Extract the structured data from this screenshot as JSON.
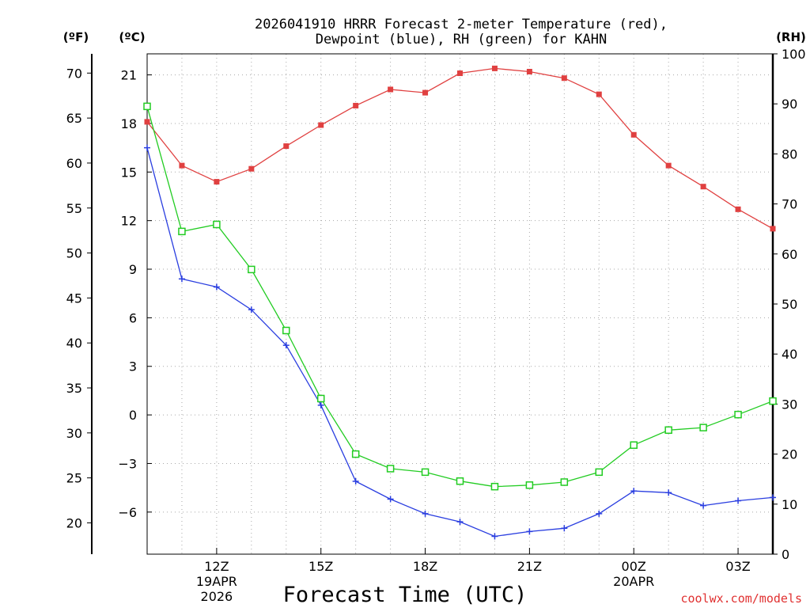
{
  "chart_data": {
    "type": "line",
    "title_line1": "2026041910 HRRR Forecast 2-meter Temperature (red),",
    "title_line2": "Dewpoint (blue), RH (green) for KAHN",
    "xlabel": "Forecast Time (UTC)",
    "credit": "coolwx.com/models",
    "units": {
      "f": "(ºF)",
      "c": "(ºC)",
      "rh": "(RH)"
    },
    "x": [
      10,
      11,
      12,
      13,
      14,
      15,
      16,
      17,
      18,
      19,
      20,
      21,
      22,
      23,
      24,
      25,
      26,
      27,
      28
    ],
    "xlim": [
      10,
      28
    ],
    "c_ylim": [
      -8.6,
      22.3
    ],
    "c_ticks": [
      "21",
      "18",
      "15",
      "12",
      "9",
      "6",
      "3",
      "0",
      "−3",
      "−6"
    ],
    "c_tick_values": [
      21,
      18,
      15,
      12,
      9,
      6,
      3,
      0,
      -3,
      -6
    ],
    "f_ticks": [
      "70",
      "65",
      "60",
      "55",
      "50",
      "45",
      "40",
      "35",
      "30",
      "25",
      "20"
    ],
    "f_tick_values": [
      70,
      65,
      60,
      55,
      50,
      45,
      40,
      35,
      30,
      25,
      20
    ],
    "rh_ylim": [
      0,
      100
    ],
    "rh_ticks": [
      "100",
      "90",
      "80",
      "70",
      "60",
      "50",
      "40",
      "30",
      "20",
      "10",
      "0"
    ],
    "rh_tick_values": [
      100,
      90,
      80,
      70,
      60,
      50,
      40,
      30,
      20,
      10,
      0
    ],
    "x_ticks": [
      {
        "x": 12,
        "lines": [
          "12Z",
          "19APR",
          "2026"
        ]
      },
      {
        "x": 15,
        "lines": [
          "15Z"
        ]
      },
      {
        "x": 18,
        "lines": [
          "18Z"
        ]
      },
      {
        "x": 21,
        "lines": [
          "21Z"
        ]
      },
      {
        "x": 24,
        "lines": [
          "00Z",
          "20APR"
        ]
      },
      {
        "x": 27,
        "lines": [
          "03Z"
        ]
      }
    ],
    "series": [
      {
        "name": "Temperature",
        "axis": "c",
        "color": "#e04040",
        "marker": "filled-square",
        "values": [
          18.1,
          15.4,
          14.4,
          15.2,
          16.6,
          17.9,
          19.1,
          20.1,
          19.9,
          21.1,
          21.4,
          21.2,
          20.8,
          19.8,
          17.3,
          15.4,
          14.1,
          12.7,
          11.5
        ]
      },
      {
        "name": "Dewpoint",
        "axis": "c",
        "color": "#2a3ee0",
        "marker": "plus",
        "values": [
          16.5,
          8.4,
          7.9,
          6.5,
          4.3,
          0.6,
          -4.1,
          -5.2,
          -6.1,
          -6.6,
          -7.5,
          -7.2,
          -7.0,
          -6.1,
          -4.7,
          -4.8,
          -5.6,
          -5.3,
          -5.1
        ]
      },
      {
        "name": "RH",
        "axis": "rh",
        "color": "#22cc22",
        "marker": "hollow-square",
        "values": [
          89.5,
          64.5,
          65.9,
          56.9,
          44.7,
          31.1,
          20.0,
          17.1,
          16.4,
          14.6,
          13.5,
          13.8,
          14.4,
          16.4,
          21.8,
          24.8,
          25.3,
          27.9,
          30.6
        ]
      }
    ]
  }
}
